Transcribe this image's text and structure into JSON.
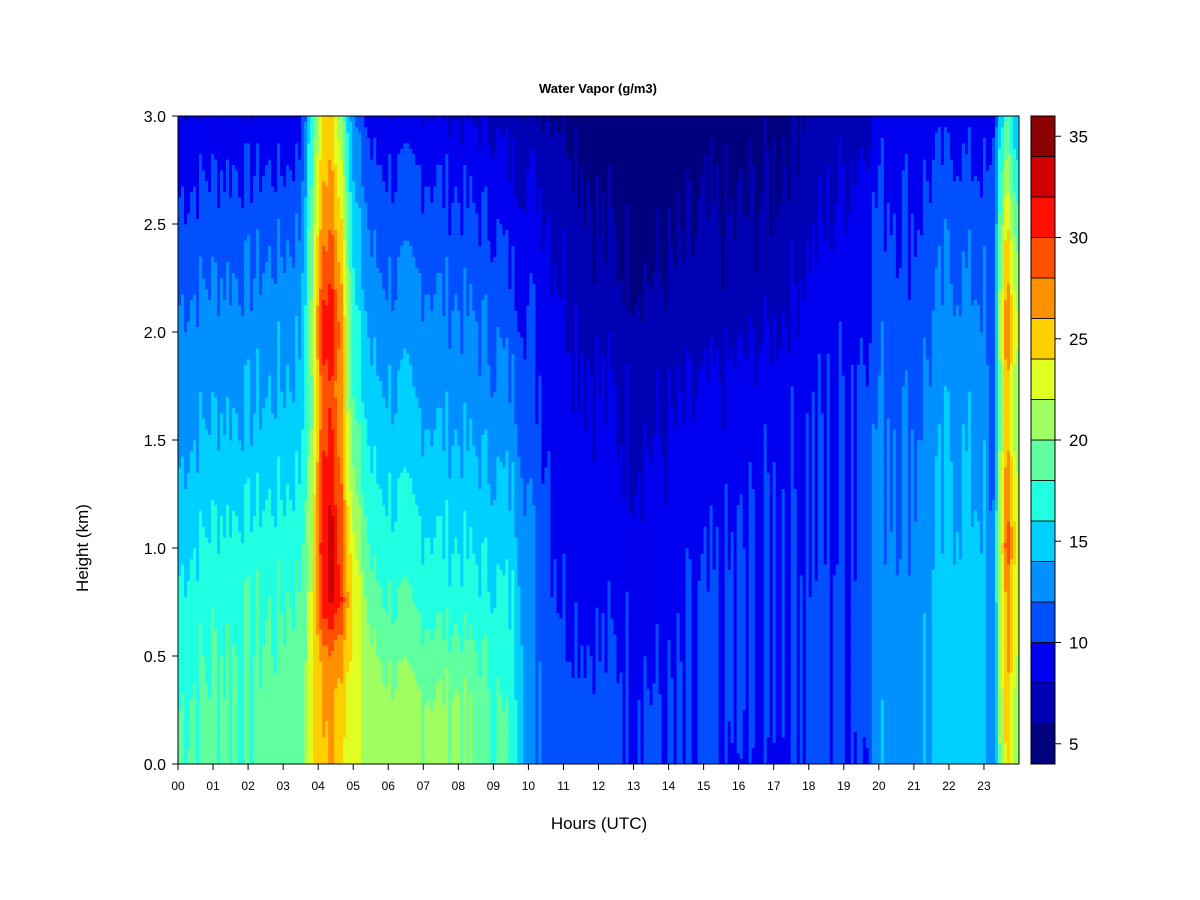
{
  "chart_data": {
    "type": "heatmap",
    "title": "Water Vapor (g/m3)",
    "xlabel": "Hours (UTC)",
    "ylabel": "Height (km)",
    "x_ticks": [
      "00",
      "01",
      "02",
      "03",
      "04",
      "05",
      "06",
      "07",
      "08",
      "09",
      "10",
      "11",
      "12",
      "13",
      "14",
      "15",
      "16",
      "17",
      "18",
      "19",
      "20",
      "21",
      "22",
      "23"
    ],
    "xlim": [
      0,
      24
    ],
    "y_ticks": [
      "0.0",
      "0.5",
      "1.0",
      "1.5",
      "2.0",
      "2.5",
      "3.0"
    ],
    "ylim": [
      0,
      3
    ],
    "colorbar": {
      "range": [
        4,
        36
      ],
      "ticks": [
        "5",
        "10",
        "15",
        "20",
        "25",
        "30",
        "35"
      ],
      "levels": [
        4,
        6,
        8,
        10,
        12,
        14,
        16,
        18,
        20,
        22,
        24,
        26,
        28,
        30,
        32,
        34,
        36
      ],
      "colors": [
        "#00007f",
        "#0000b4",
        "#0000f0",
        "#0050ff",
        "#0090ff",
        "#00d0ff",
        "#20ffe0",
        "#60ff9f",
        "#a0ff60",
        "#e0ff20",
        "#ffd000",
        "#ff9000",
        "#ff5000",
        "#ff1000",
        "#d00000",
        "#8b0000"
      ]
    },
    "profiles": {
      "heights_km": [
        0.0,
        0.25,
        0.5,
        0.75,
        1.0,
        1.25,
        1.5,
        1.75,
        2.0,
        2.25,
        2.5,
        2.75,
        3.0
      ],
      "columns": [
        {
          "hour": 0.0,
          "values": [
            18.5,
            18.0,
            17.5,
            16.5,
            15.5,
            14.5,
            13.5,
            13.0,
            12.5,
            11.5,
            10.5,
            9.5,
            8.5
          ]
        },
        {
          "hour": 1.0,
          "values": [
            18.5,
            18.5,
            18.0,
            17.5,
            16.5,
            15.5,
            14.5,
            13.5,
            13.0,
            12.0,
            11.0,
            10.0,
            8.5
          ]
        },
        {
          "hour": 2.0,
          "values": [
            18.5,
            18.5,
            18.0,
            17.5,
            17.0,
            15.5,
            14.5,
            13.5,
            13.0,
            12.0,
            11.0,
            10.0,
            8.5
          ]
        },
        {
          "hour": 3.0,
          "values": [
            19.0,
            19.0,
            18.5,
            18.0,
            17.0,
            16.0,
            15.0,
            14.0,
            13.5,
            12.5,
            11.5,
            10.0,
            8.5
          ]
        },
        {
          "hour": 3.5,
          "values": [
            19.5,
            19.5,
            19.0,
            18.5,
            17.5,
            16.5,
            15.5,
            14.5,
            14.0,
            13.0,
            12.0,
            10.5,
            9.0
          ]
        },
        {
          "hour": 3.85,
          "values": [
            24.0,
            23.5,
            23.0,
            23.0,
            22.5,
            21.5,
            21.0,
            21.0,
            21.5,
            21.0,
            20.0,
            19.0,
            17.5
          ]
        },
        {
          "hour": 4.1,
          "values": [
            25.5,
            26.0,
            27.0,
            31.0,
            31.5,
            31.0,
            29.5,
            29.0,
            31.0,
            29.0,
            27.0,
            25.5,
            24.0
          ]
        },
        {
          "hour": 4.4,
          "values": [
            26.0,
            26.5,
            27.5,
            32.0,
            32.5,
            31.5,
            30.0,
            29.5,
            31.5,
            29.5,
            27.5,
            26.0,
            24.5
          ]
        },
        {
          "hour": 4.7,
          "values": [
            25.0,
            25.5,
            26.5,
            30.0,
            29.0,
            28.0,
            27.0,
            26.5,
            27.0,
            25.5,
            24.0,
            22.0,
            20.0
          ]
        },
        {
          "hour": 5.0,
          "values": [
            22.0,
            22.5,
            23.5,
            23.5,
            22.5,
            20.5,
            19.0,
            17.5,
            17.0,
            16.0,
            15.0,
            13.5,
            12.0
          ]
        },
        {
          "hour": 5.5,
          "values": [
            21.5,
            21.5,
            20.5,
            19.0,
            17.5,
            16.5,
            15.5,
            14.5,
            13.5,
            12.5,
            11.5,
            10.5,
            9.0
          ]
        },
        {
          "hour": 6.0,
          "values": [
            21.0,
            21.0,
            19.5,
            18.0,
            17.0,
            16.0,
            15.0,
            14.0,
            13.0,
            12.0,
            11.0,
            10.0,
            8.5
          ]
        },
        {
          "hour": 7.0,
          "values": [
            20.5,
            20.5,
            19.0,
            17.5,
            16.5,
            15.5,
            14.5,
            13.5,
            13.0,
            12.0,
            11.0,
            10.0,
            8.5
          ]
        },
        {
          "hour": 8.0,
          "values": [
            20.5,
            20.5,
            19.0,
            17.0,
            16.0,
            15.0,
            14.0,
            13.0,
            12.5,
            11.5,
            10.5,
            9.5,
            8.0
          ]
        },
        {
          "hour": 9.0,
          "values": [
            18.5,
            18.5,
            17.5,
            16.5,
            15.5,
            14.5,
            13.5,
            12.5,
            12.0,
            11.0,
            10.0,
            9.0,
            7.5
          ]
        },
        {
          "hour": 9.6,
          "values": [
            17.0,
            17.0,
            16.5,
            16.0,
            15.0,
            14.0,
            13.0,
            12.0,
            11.0,
            10.0,
            9.0,
            8.0,
            7.0
          ]
        },
        {
          "hour": 10.1,
          "values": [
            12.5,
            12.5,
            12.5,
            12.0,
            12.0,
            11.5,
            11.0,
            10.5,
            10.0,
            9.5,
            9.0,
            8.0,
            6.5
          ]
        },
        {
          "hour": 11.0,
          "values": [
            11.5,
            11.5,
            10.5,
            10.0,
            9.5,
            9.5,
            9.0,
            9.0,
            8.5,
            8.0,
            7.5,
            7.0,
            6.0
          ]
        },
        {
          "hour": 12.0,
          "values": [
            11.0,
            11.0,
            10.0,
            9.5,
            9.0,
            9.0,
            8.5,
            8.0,
            7.5,
            6.5,
            6.0,
            5.5,
            5.0
          ]
        },
        {
          "hour": 13.0,
          "values": [
            10.5,
            10.5,
            10.0,
            9.5,
            9.0,
            8.5,
            8.0,
            7.5,
            7.0,
            6.0,
            5.5,
            5.0,
            4.5
          ]
        },
        {
          "hour": 14.0,
          "values": [
            10.0,
            10.0,
            9.5,
            9.0,
            9.0,
            8.5,
            8.0,
            7.5,
            7.0,
            6.0,
            5.5,
            5.0,
            4.5
          ]
        },
        {
          "hour": 15.0,
          "values": [
            10.0,
            10.0,
            10.0,
            10.0,
            9.5,
            9.0,
            8.5,
            8.0,
            7.0,
            6.5,
            6.0,
            5.5,
            5.0
          ]
        },
        {
          "hour": 16.0,
          "values": [
            9.5,
            10.0,
            10.0,
            10.0,
            10.0,
            9.5,
            9.0,
            8.5,
            7.5,
            6.5,
            6.0,
            5.5,
            5.0
          ]
        },
        {
          "hour": 17.0,
          "values": [
            9.5,
            10.0,
            10.0,
            10.0,
            10.0,
            10.0,
            9.5,
            9.0,
            8.0,
            7.0,
            6.5,
            6.0,
            5.5
          ]
        },
        {
          "hour": 18.0,
          "values": [
            10.5,
            10.5,
            10.5,
            10.5,
            10.0,
            10.0,
            10.0,
            9.5,
            9.0,
            8.5,
            7.5,
            7.0,
            6.5
          ]
        },
        {
          "hour": 19.0,
          "values": [
            10.5,
            10.5,
            10.5,
            10.5,
            10.0,
            10.0,
            10.0,
            10.0,
            9.5,
            9.0,
            8.5,
            8.0,
            7.0
          ]
        },
        {
          "hour": 19.6,
          "values": [
            10.0,
            10.5,
            10.5,
            10.5,
            10.5,
            10.5,
            10.5,
            10.5,
            10.0,
            9.5,
            9.0,
            8.5,
            7.5
          ]
        },
        {
          "hour": 20.0,
          "values": [
            13.5,
            13.5,
            13.0,
            13.0,
            12.5,
            12.5,
            12.5,
            12.0,
            11.5,
            11.0,
            10.5,
            10.0,
            9.0
          ]
        },
        {
          "hour": 21.0,
          "values": [
            13.0,
            13.0,
            13.0,
            13.0,
            12.5,
            12.0,
            12.0,
            11.5,
            11.0,
            10.5,
            10.0,
            9.5,
            9.0
          ]
        },
        {
          "hour": 22.0,
          "values": [
            15.5,
            15.5,
            15.5,
            15.0,
            14.5,
            14.5,
            14.0,
            13.5,
            13.0,
            12.0,
            11.5,
            10.5,
            9.0
          ]
        },
        {
          "hour": 23.0,
          "values": [
            15.0,
            15.0,
            15.0,
            15.0,
            14.5,
            14.0,
            13.5,
            13.0,
            12.5,
            12.0,
            11.0,
            10.0,
            9.0
          ]
        },
        {
          "hour": 23.25,
          "values": [
            11.0,
            11.0,
            11.0,
            11.0,
            11.0,
            10.5,
            10.5,
            10.5,
            10.0,
            10.0,
            9.5,
            9.5,
            8.5
          ]
        },
        {
          "hour": 23.45,
          "values": [
            20.0,
            20.5,
            21.0,
            21.0,
            22.0,
            21.0,
            20.0,
            19.5,
            21.0,
            20.0,
            18.5,
            17.0,
            15.0
          ]
        },
        {
          "hour": 23.65,
          "values": [
            24.0,
            25.0,
            26.5,
            26.0,
            29.0,
            27.5,
            26.0,
            25.5,
            28.0,
            26.0,
            24.0,
            21.0,
            18.0
          ]
        },
        {
          "hour": 23.85,
          "values": [
            21.0,
            22.0,
            23.0,
            23.0,
            25.0,
            24.0,
            22.0,
            21.5,
            24.0,
            22.0,
            20.0,
            17.5,
            15.0
          ]
        },
        {
          "hour": 24.0,
          "values": [
            20.0,
            21.0,
            22.0,
            22.0,
            23.5,
            22.5,
            21.0,
            20.5,
            22.5,
            21.0,
            19.0,
            16.5,
            14.0
          ]
        }
      ]
    }
  }
}
